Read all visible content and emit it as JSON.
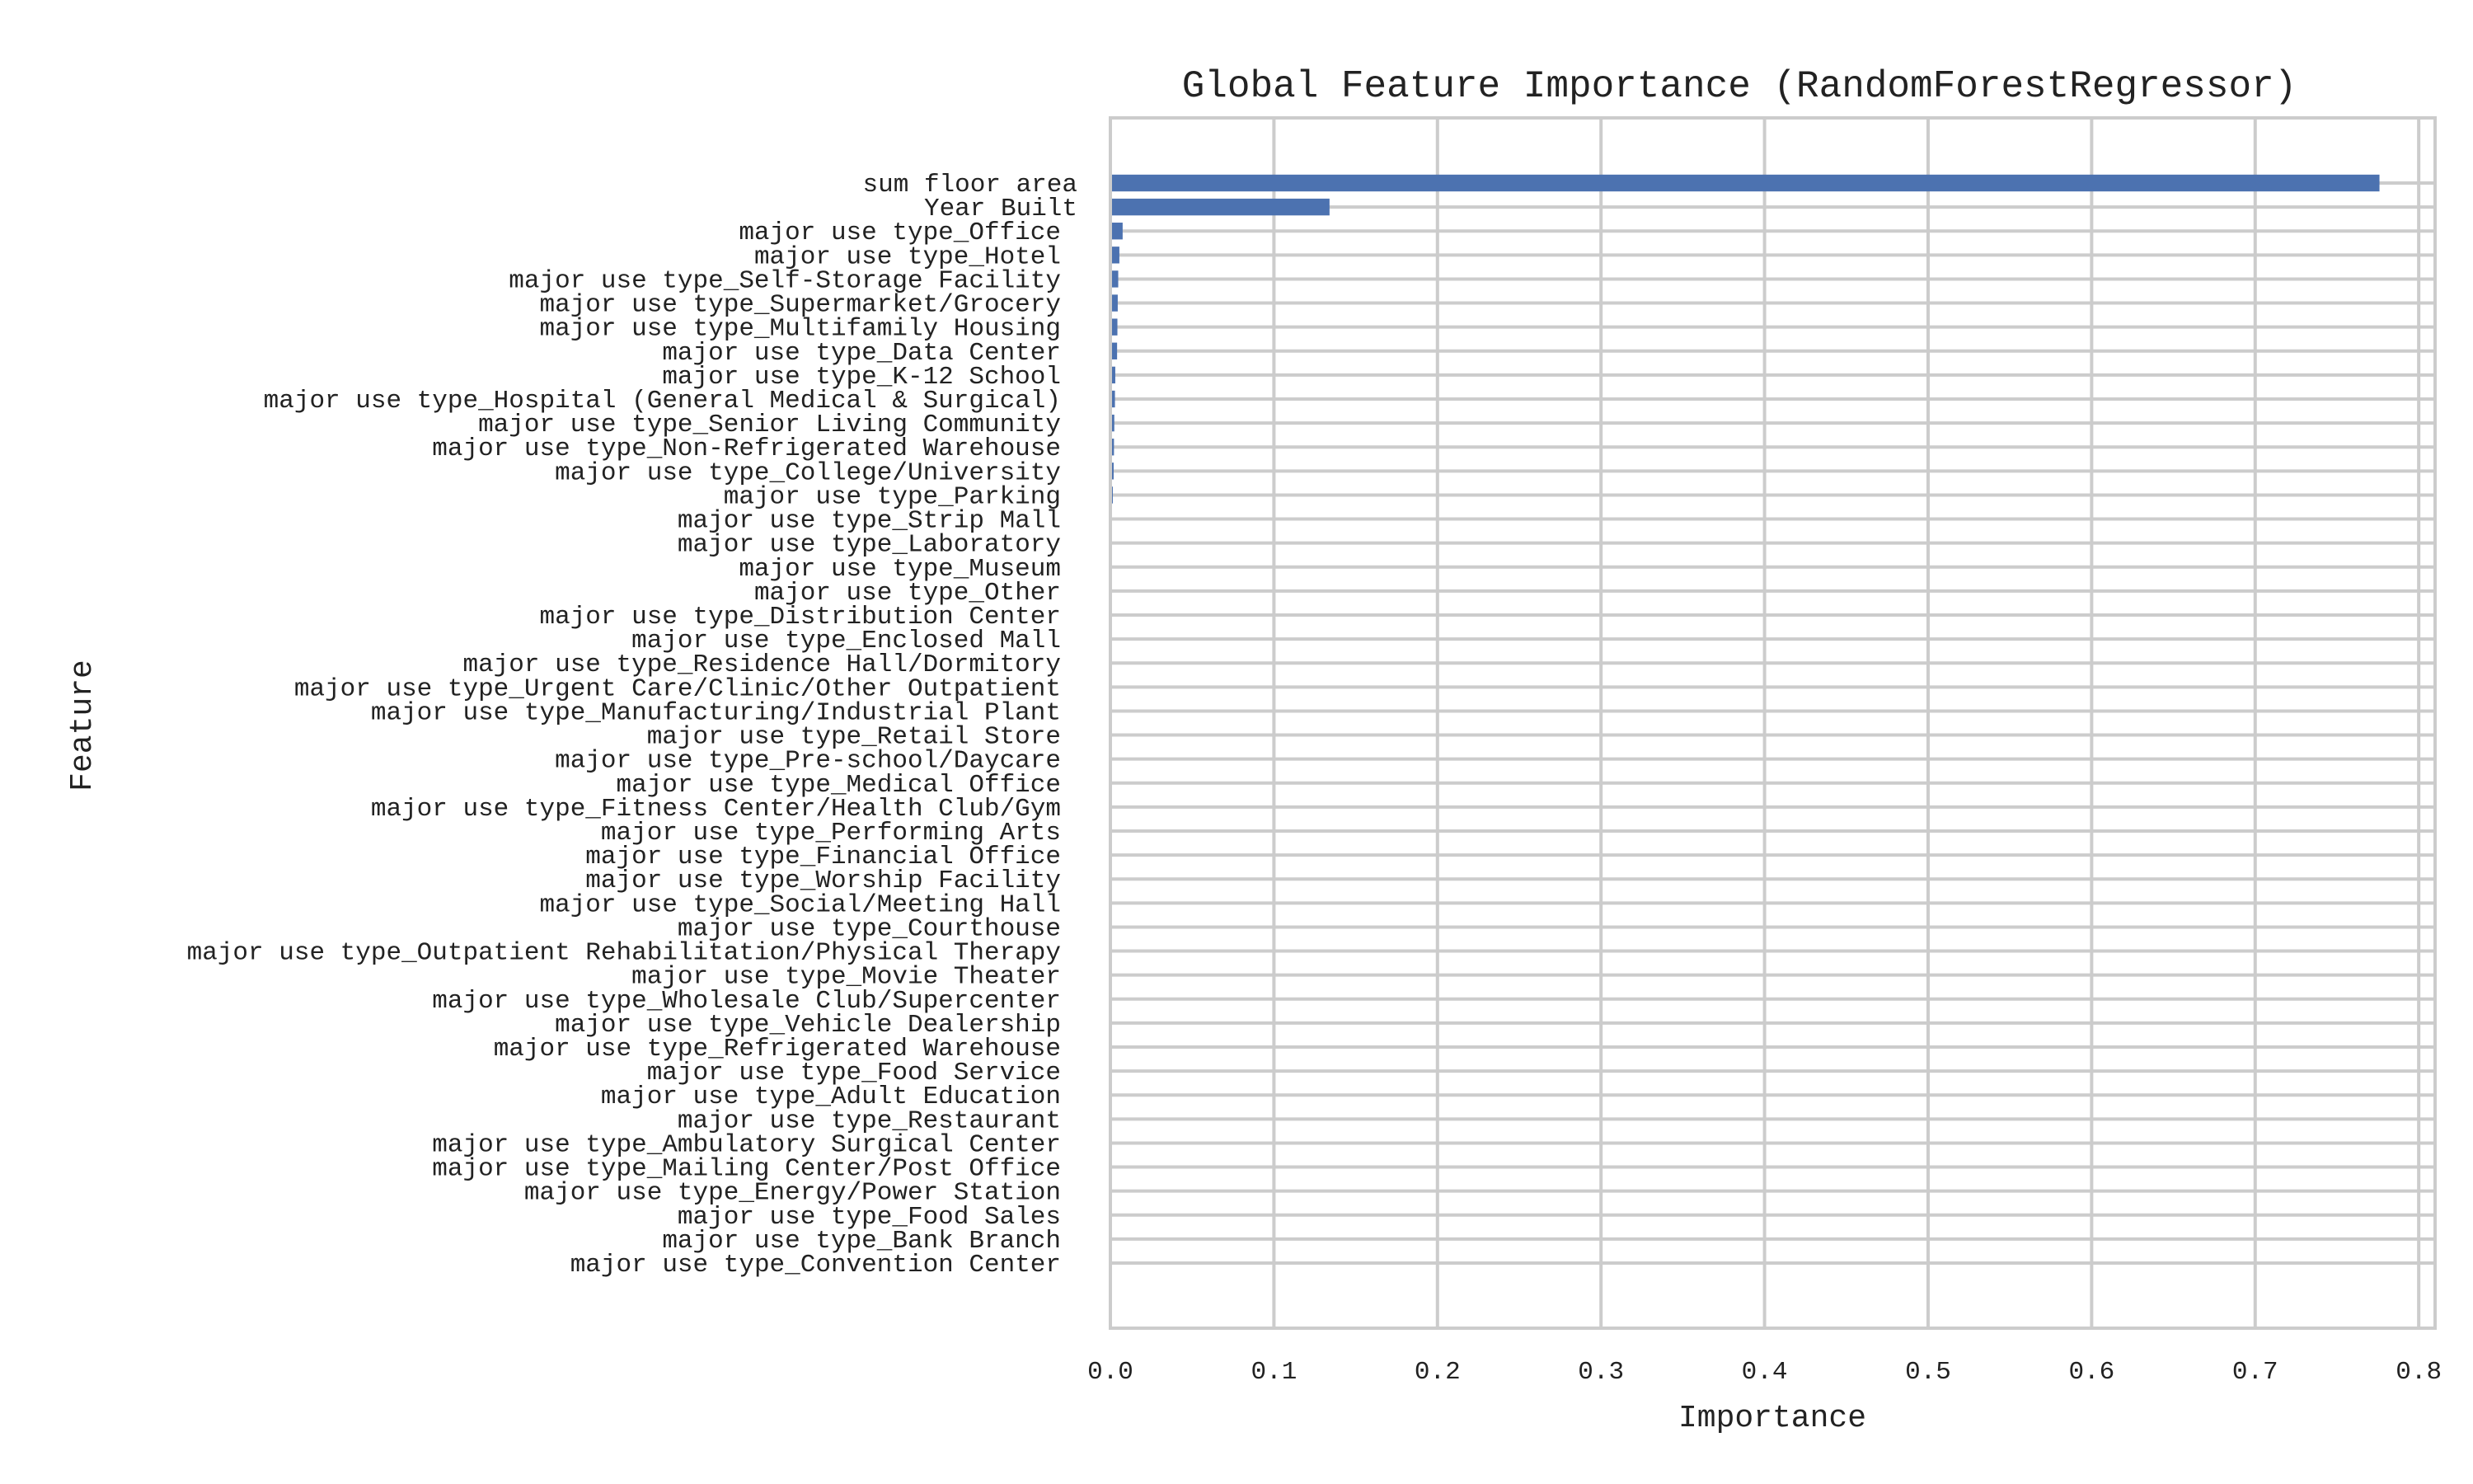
{
  "chart_data": {
    "type": "bar",
    "orientation": "horizontal",
    "title": "Global Feature Importance (RandomForestRegressor)",
    "xlabel": "Importance",
    "ylabel": "Feature",
    "xlim": [
      0,
      0.81
    ],
    "xticks": [
      "0.0",
      "0.1",
      "0.2",
      "0.3",
      "0.4",
      "0.5",
      "0.6",
      "0.7",
      "0.8"
    ],
    "grid": true,
    "bar_color": "#4c72b0",
    "categories": [
      "sum floor area",
      "Year Built",
      "major use type_Office",
      "major use type_Hotel",
      "major use type_Self-Storage Facility",
      "major use type_Supermarket/Grocery",
      "major use type_Multifamily Housing",
      "major use type_Data Center",
      "major use type_K-12 School",
      "major use type_Hospital (General Medical & Surgical)",
      "major use type_Senior Living Community",
      "major use type_Non-Refrigerated Warehouse",
      "major use type_College/University",
      "major use type_Parking",
      "major use type_Strip Mall",
      "major use type_Laboratory",
      "major use type_Museum",
      "major use type_Other",
      "major use type_Distribution Center",
      "major use type_Enclosed Mall",
      "major use type_Residence Hall/Dormitory",
      "major use type_Urgent Care/Clinic/Other Outpatient",
      "major use type_Manufacturing/Industrial Plant",
      "major use type_Retail Store",
      "major use type_Pre-school/Daycare",
      "major use type_Medical Office",
      "major use type_Fitness Center/Health Club/Gym",
      "major use type_Performing Arts",
      "major use type_Financial Office",
      "major use type_Worship Facility",
      "major use type_Social/Meeting Hall",
      "major use type_Courthouse",
      "major use type_Outpatient Rehabilitation/Physical Therapy",
      "major use type_Movie Theater",
      "major use type_Wholesale Club/Supercenter",
      "major use type_Vehicle Dealership",
      "major use type_Refrigerated Warehouse",
      "major use type_Food Service",
      "major use type_Adult Education",
      "major use type_Restaurant",
      "major use type_Ambulatory Surgical Center",
      "major use type_Mailing Center/Post Office",
      "major use type_Energy/Power Station",
      "major use type_Food Sales",
      "major use type_Bank Branch",
      "major use type_Convention Center"
    ],
    "values": [
      0.776,
      0.134,
      0.0075,
      0.0055,
      0.0048,
      0.0045,
      0.0043,
      0.0041,
      0.003,
      0.0028,
      0.0024,
      0.0022,
      0.002,
      0.0015,
      0.0009,
      0.0008,
      0.0007,
      0.0006,
      0.0005,
      0.0005,
      0.0004,
      0.0004,
      0.0004,
      0.0003,
      0.0003,
      0.0003,
      0.0003,
      0.0002,
      0.0002,
      0.0002,
      0.0002,
      0.0002,
      0.0002,
      0.0001,
      0.0001,
      0.0001,
      0.0001,
      0.0001,
      0.0001,
      0.0001,
      0.0001,
      0.0001,
      0.0,
      0.0,
      0.0,
      0.0
    ]
  }
}
